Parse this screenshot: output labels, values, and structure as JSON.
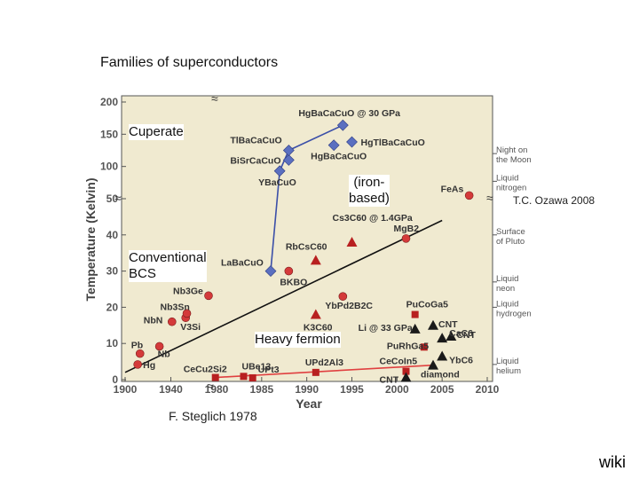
{
  "slide": {
    "title": "Families of superconductors",
    "credit_ozawa": "T.C. Ozawa 2008",
    "credit_steglich": "F. Steglich 1978",
    "wiki": "wiki"
  },
  "annotations": {
    "cuprate": "Cuperate",
    "iron": "(iron-\nbased)",
    "conventional": "Conventional\nBCS",
    "heavy": "Heavy fermion"
  },
  "chart_data": {
    "type": "scatter",
    "xlabel": "Year",
    "ylabel": "Temperature (Kelvin)",
    "x_ticks": [
      "1900",
      "1940",
      "1980",
      "1985",
      "1990",
      "1995",
      "2000",
      "2005",
      "2010"
    ],
    "y_ticks": [
      "0",
      "10",
      "20",
      "30",
      "40",
      "50",
      "100",
      "150",
      "200"
    ],
    "y_scale": "broken: linear 0-50 K, compressed 50-200 K",
    "x_scale": "broken: compressed 1900-1980, linear 1980-2010",
    "right_labels": [
      {
        "text": "Night on\nthe Moon",
        "y": 120
      },
      {
        "text": "Liquid\nnitrogen",
        "y": 77
      },
      {
        "text": "Surface\nof Pluto",
        "y": 40
      },
      {
        "text": "Liquid\nneon",
        "y": 27
      },
      {
        "text": "Liquid\nhydrogen",
        "y": 20
      },
      {
        "text": "Liquid\nhelium",
        "y": 4.2
      }
    ],
    "points": [
      {
        "label": "Hg",
        "x": 1911,
        "y": 4.2,
        "family": "conventional",
        "marker": "circle"
      },
      {
        "label": "Pb",
        "x": 1913,
        "y": 7.2,
        "family": "conventional",
        "marker": "circle"
      },
      {
        "label": "Nb",
        "x": 1930,
        "y": 9.2,
        "family": "conventional",
        "marker": "circle"
      },
      {
        "label": "NbN",
        "x": 1941,
        "y": 16,
        "family": "conventional",
        "marker": "circle"
      },
      {
        "label": "V3Si",
        "x": 1953,
        "y": 17.1,
        "family": "conventional",
        "marker": "circle"
      },
      {
        "label": "Nb3Sn",
        "x": 1954,
        "y": 18.3,
        "family": "conventional",
        "marker": "circle"
      },
      {
        "label": "Nb3Ge",
        "x": 1973,
        "y": 23.2,
        "family": "conventional",
        "marker": "circle"
      },
      {
        "label": "CeCu2Si2",
        "x": 1979,
        "y": 0.6,
        "family": "heavy fermion",
        "marker": "square"
      },
      {
        "label": "UBe13",
        "x": 1983,
        "y": 0.9,
        "family": "heavy fermion",
        "marker": "square"
      },
      {
        "label": "UPt3",
        "x": 1984,
        "y": 0.5,
        "family": "heavy fermion",
        "marker": "square"
      },
      {
        "label": "LaBaCuO",
        "x": 1986,
        "y": 30,
        "family": "cuprate",
        "marker": "diamond"
      },
      {
        "label": "BKBO",
        "x": 1988,
        "y": 30,
        "family": "conventional",
        "marker": "circle"
      },
      {
        "label": "YBaCuO",
        "x": 1987,
        "y": 93,
        "family": "cuprate",
        "marker": "diamond"
      },
      {
        "label": "BiSrCaCuO",
        "x": 1988,
        "y": 110,
        "family": "cuprate",
        "marker": "diamond"
      },
      {
        "label": "TlBaCaCuO",
        "x": 1988,
        "y": 125,
        "family": "cuprate",
        "marker": "diamond"
      },
      {
        "label": "HgBaCaCuO",
        "x": 1993,
        "y": 133,
        "family": "cuprate",
        "marker": "diamond"
      },
      {
        "label": "HgTlBaCaCuO",
        "x": 1995,
        "y": 138,
        "family": "cuprate",
        "marker": "diamond"
      },
      {
        "label": "HgBaCaCuO @ 30 GPa",
        "x": 1994,
        "y": 164,
        "family": "cuprate",
        "marker": "diamond"
      },
      {
        "label": "K3C60",
        "x": 1991,
        "y": 18,
        "family": "fullerene",
        "marker": "triangle"
      },
      {
        "label": "RbCsC60",
        "x": 1991,
        "y": 33,
        "family": "fullerene",
        "marker": "triangle"
      },
      {
        "label": "Cs3C60 @ 1.4GPa",
        "x": 1995,
        "y": 38,
        "family": "fullerene",
        "marker": "triangle"
      },
      {
        "label": "UPd2Al3",
        "x": 1991,
        "y": 2,
        "family": "heavy fermion",
        "marker": "square"
      },
      {
        "label": "YbPd2B2C",
        "x": 1994,
        "y": 23,
        "family": "conventional",
        "marker": "circle"
      },
      {
        "label": "MgB2",
        "x": 2001,
        "y": 39,
        "family": "conventional",
        "marker": "circle"
      },
      {
        "label": "CeCoIn5",
        "x": 2001,
        "y": 2.3,
        "family": "heavy fermion",
        "marker": "square"
      },
      {
        "label": "PuCoGa5",
        "x": 2002,
        "y": 18,
        "family": "heavy fermion",
        "marker": "square"
      },
      {
        "label": "PuRhGa5",
        "x": 2003,
        "y": 9,
        "family": "heavy fermion",
        "marker": "square"
      },
      {
        "label": "Li @ 33 GPa",
        "x": 2002,
        "y": 14,
        "family": "conventional",
        "marker": "triangle"
      },
      {
        "label": "CNT",
        "x": 2001,
        "y": 0.6,
        "family": "carbon",
        "marker": "triangle"
      },
      {
        "label": "CNT",
        "x": 2004,
        "y": 15,
        "family": "carbon",
        "marker": "triangle"
      },
      {
        "label": "CNT",
        "x": 2006,
        "y": 12,
        "family": "carbon",
        "marker": "triangle"
      },
      {
        "label": "diamond",
        "x": 2004,
        "y": 4,
        "family": "carbon",
        "marker": "triangle"
      },
      {
        "label": "CaC6",
        "x": 2005,
        "y": 11.5,
        "family": "carbon",
        "marker": "triangle"
      },
      {
        "label": "YbC6",
        "x": 2005,
        "y": 6.5,
        "family": "carbon",
        "marker": "triangle"
      },
      {
        "label": "FeAs",
        "x": 2008,
        "y": 55,
        "family": "iron-based",
        "marker": "circle"
      }
    ],
    "colors": {
      "plot_bg": "#f0ead0",
      "conventional": "#d43a3a",
      "cuprate": "#5a6fc0",
      "fullerene": "#b82020",
      "heavy_fermion": "#b82020",
      "carbon": "#1a1a1a",
      "trend_conventional": "#111111",
      "trend_cuprate": "#3b4fa8",
      "trend_heavy": "#e04040"
    }
  }
}
